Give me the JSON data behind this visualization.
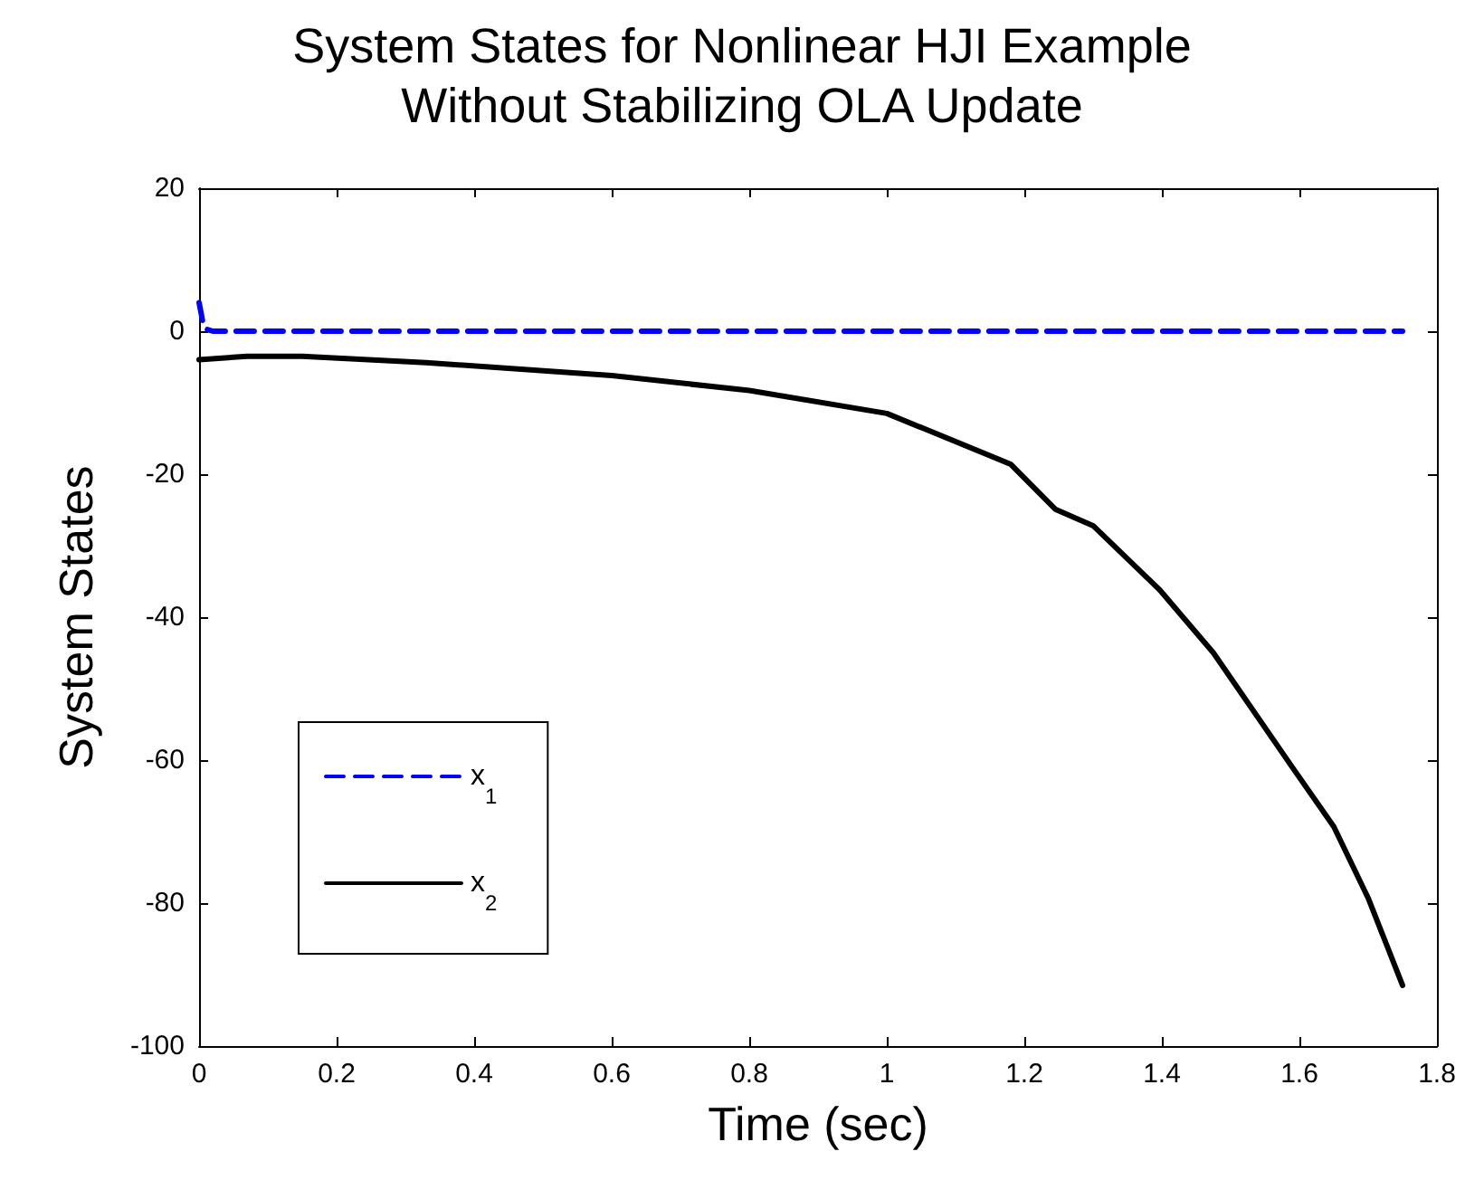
{
  "chart_data": {
    "type": "line",
    "title": "System States for Nonlinear HJI Example\nWithout Stabilizing OLA Update",
    "xlabel": "Time (sec)",
    "ylabel": "System States",
    "xlim": [
      0,
      1.8
    ],
    "xticks": [
      0,
      0.2,
      0.4,
      0.6,
      0.8,
      1,
      1.2,
      1.4,
      1.6,
      1.8
    ],
    "ylim": [
      -100,
      20
    ],
    "yticks": [
      -100,
      -80,
      -60,
      -40,
      -20,
      0,
      20
    ],
    "grid": false,
    "legend": "bottom left",
    "marker": "none",
    "series": [
      {
        "name": "x$_{1}$",
        "color": "#0000ff",
        "line_style": "dashed",
        "x": [
          0,
          0.005,
          0.01,
          0.02,
          0.1,
          0.5,
          1,
          1.5,
          1.75
        ],
        "values": [
          4,
          1.5,
          0.3,
          0,
          0,
          0,
          0,
          0,
          0
        ]
      },
      {
        "name": "x$_{2}$",
        "color": "#000000",
        "line_style": "solid",
        "x": [
          0,
          0.07,
          0.15,
          0.33,
          0.6,
          0.8,
          1,
          1.18,
          1.245,
          1.3,
          1.397,
          1.475,
          1.589,
          1.65,
          1.7,
          1.75
        ],
        "values": [
          -4,
          -3.5,
          -3.5,
          -4.4,
          -6.2,
          -8.3,
          -11.5,
          -18.6,
          -24.9,
          -27.2,
          -36.2,
          -45,
          -60.9,
          -69.3,
          -79.3,
          -91.5
        ]
      }
    ]
  }
}
